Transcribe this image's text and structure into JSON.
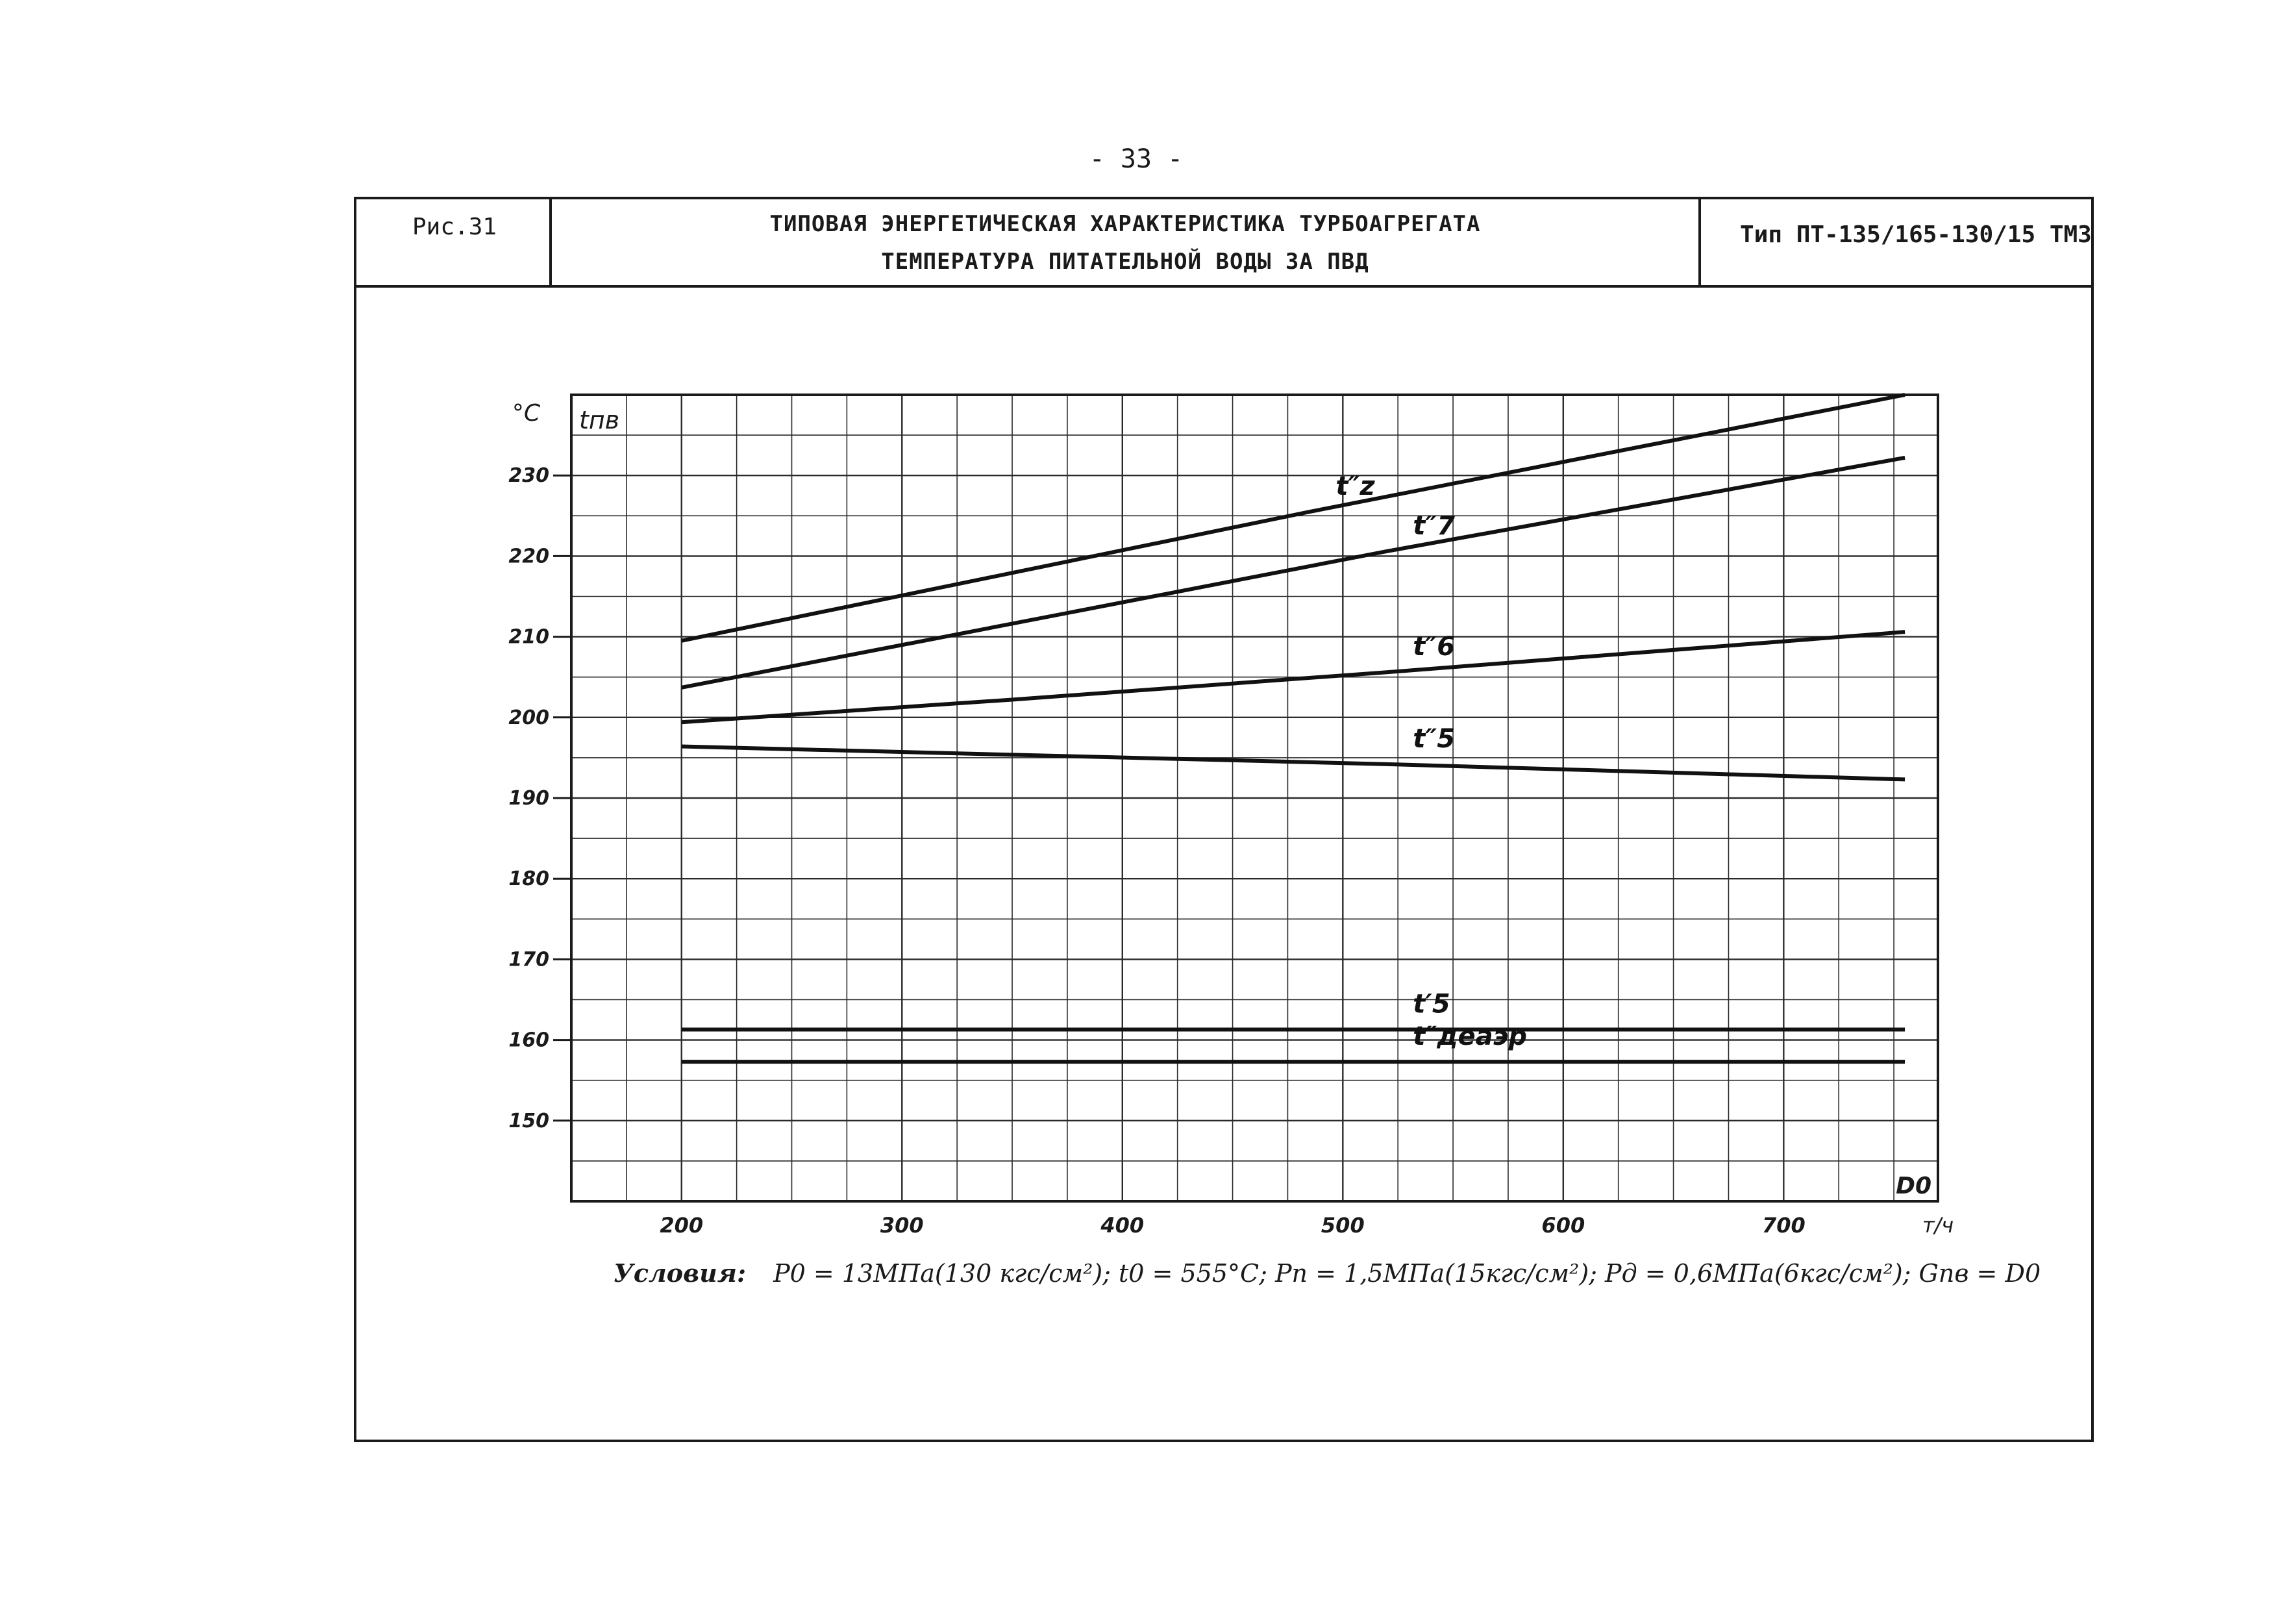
{
  "page_number": "- 33 -",
  "header": {
    "figure_label": "Рис.31",
    "title_line1": "ТИПОВАЯ ЭНЕРГЕТИЧЕСКАЯ ХАРАКТЕРИСТИКА ТУРБОАГРЕГАТА",
    "title_line2": "ТЕМПЕРАТУРА ПИТАТЕЛЬНОЙ ВОДЫ ЗА ПВД",
    "type_label": "Тип ПТ-135/165-130/15 ТМЗ"
  },
  "conditions": {
    "lead": "Условия:",
    "text": "P0 = 13МПа(130 кгс/см²); t0 = 555°C; Pп = 1,5МПа(15кгс/см²); Pд = 0,6МПа(6кгс/см²); Gпв = D0"
  },
  "chart_data": {
    "type": "line",
    "title": "ТЕМПЕРАТУРА ПИТАТЕЛЬНОЙ ВОДЫ ЗА ПВД",
    "ylabel": "tпв",
    "yunit": "°C",
    "xlabel": "D0",
    "xunit": "т/ч",
    "xlim": [
      150,
      770
    ],
    "ylim": [
      140,
      240
    ],
    "x_ticks": [
      200,
      300,
      400,
      500,
      600,
      700
    ],
    "y_ticks": [
      150,
      160,
      170,
      180,
      190,
      200,
      210,
      220,
      230
    ],
    "grid": true,
    "series": [
      {
        "name": "t″z",
        "x": [
          200,
          485,
          755
        ],
        "y": [
          209.5,
          225.5,
          240.0
        ]
      },
      {
        "name": "t″7",
        "x": [
          200,
          520,
          755
        ],
        "y": [
          203.7,
          220.6,
          232.2
        ]
      },
      {
        "name": "t″6",
        "x": [
          200,
          350,
          520,
          755
        ],
        "y": [
          199.4,
          202.2,
          205.6,
          210.6
        ]
      },
      {
        "name": "t″5",
        "x": [
          200,
          520,
          755
        ],
        "y": [
          196.4,
          194.2,
          192.3
        ]
      },
      {
        "name": "t′5",
        "x": [
          200,
          755
        ],
        "y": [
          161.3,
          161.3
        ]
      },
      {
        "name": "t″деаэр",
        "x": [
          200,
          755
        ],
        "y": [
          157.3,
          157.3
        ]
      }
    ]
  }
}
